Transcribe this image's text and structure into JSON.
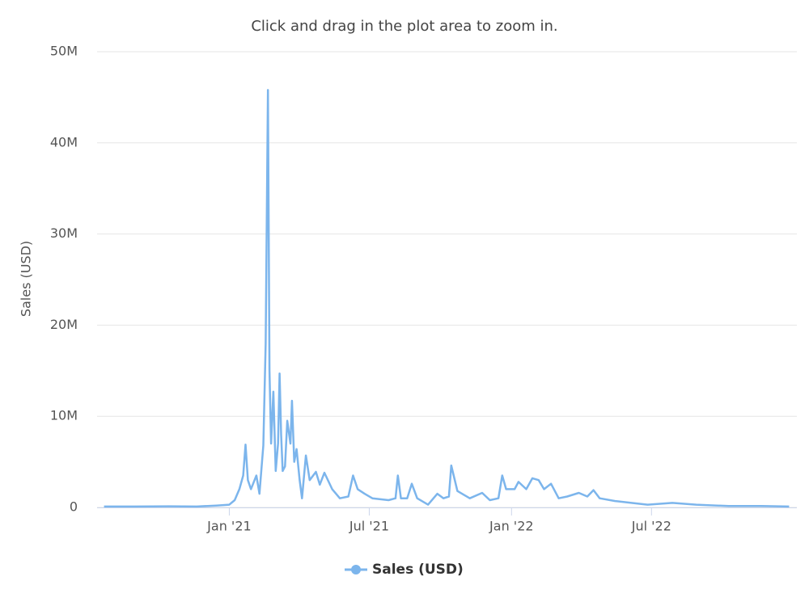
{
  "chart_data": {
    "type": "line",
    "subtitle": "Click and drag in the plot area to zoom in.",
    "y_label": "Sales (USD)",
    "x": [
      "2020-07-23",
      "2020-09-01",
      "2020-10-15",
      "2020-11-20",
      "2020-12-15",
      "2021-01-01",
      "2021-01-08",
      "2021-01-14",
      "2021-01-19",
      "2021-01-22",
      "2021-01-25",
      "2021-01-29",
      "2021-02-05",
      "2021-02-09",
      "2021-02-14",
      "2021-02-17",
      "2021-02-20",
      "2021-02-22",
      "2021-02-24",
      "2021-02-27",
      "2021-03-02",
      "2021-03-05",
      "2021-03-07",
      "2021-03-09",
      "2021-03-11",
      "2021-03-14",
      "2021-03-17",
      "2021-03-21",
      "2021-03-23",
      "2021-03-26",
      "2021-03-29",
      "2021-04-02",
      "2021-04-05",
      "2021-04-10",
      "2021-04-15",
      "2021-04-23",
      "2021-04-28",
      "2021-05-04",
      "2021-05-14",
      "2021-05-24",
      "2021-06-04",
      "2021-06-10",
      "2021-06-16",
      "2021-06-25",
      "2021-07-05",
      "2021-07-26",
      "2021-08-04",
      "2021-08-07",
      "2021-08-11",
      "2021-08-19",
      "2021-08-25",
      "2021-09-01",
      "2021-09-15",
      "2021-09-27",
      "2021-10-05",
      "2021-10-12",
      "2021-10-15",
      "2021-10-23",
      "2021-11-08",
      "2021-11-24",
      "2021-12-04",
      "2021-12-15",
      "2021-12-20",
      "2021-12-25",
      "2022-01-05",
      "2022-01-10",
      "2022-01-20",
      "2022-01-28",
      "2022-02-05",
      "2022-02-12",
      "2022-02-21",
      "2022-03-03",
      "2022-03-14",
      "2022-03-29",
      "2022-04-09",
      "2022-04-17",
      "2022-04-25",
      "2022-05-15",
      "2022-06-05",
      "2022-06-26",
      "2022-07-28",
      "2022-08-28",
      "2022-10-09",
      "2022-11-20",
      "2022-12-26"
    ],
    "series": [
      {
        "name": "Sales (USD)",
        "color": "#7cb5ec",
        "values": [
          100000,
          100000,
          120000,
          100000,
          200000,
          300000,
          800000,
          2000000,
          3500000,
          6900000,
          3000000,
          2000000,
          3500000,
          1500000,
          6800000,
          18000000,
          45800000,
          15000000,
          7000000,
          12700000,
          4000000,
          7000000,
          14700000,
          8000000,
          4000000,
          4500000,
          9500000,
          7000000,
          11700000,
          5000000,
          6400000,
          3000000,
          1000000,
          5700000,
          3000000,
          3900000,
          2500000,
          3800000,
          2000000,
          1000000,
          1200000,
          3500000,
          2000000,
          1500000,
          1000000,
          800000,
          1000000,
          3500000,
          1000000,
          1000000,
          2600000,
          1000000,
          300000,
          1500000,
          1000000,
          1200000,
          4600000,
          1800000,
          1000000,
          1600000,
          800000,
          1000000,
          3500000,
          2000000,
          2000000,
          2800000,
          2000000,
          3200000,
          3000000,
          2000000,
          2600000,
          1000000,
          1200000,
          1600000,
          1200000,
          1900000,
          1000000,
          700000,
          500000,
          300000,
          500000,
          300000,
          150000,
          150000,
          100000
        ]
      }
    ],
    "xlim": [
      "2020-07-14",
      "2023-01-05"
    ],
    "xticks": [
      {
        "value": "2021-01-01",
        "label": "Jan '21"
      },
      {
        "value": "2021-07-01",
        "label": "Jul '21"
      },
      {
        "value": "2022-01-01",
        "label": "Jan '22"
      },
      {
        "value": "2022-07-01",
        "label": "Jul '22"
      }
    ],
    "ylim": [
      0,
      50000000
    ],
    "yticks": [
      0,
      {
        "value": 10000000,
        "label": "10M"
      },
      {
        "value": 20000000,
        "label": "20M"
      },
      {
        "value": 30000000,
        "label": "30M"
      },
      {
        "value": 40000000,
        "label": "40M"
      },
      {
        "value": 50000000,
        "label": "50M"
      }
    ],
    "grid": true,
    "legend": "bottom"
  }
}
